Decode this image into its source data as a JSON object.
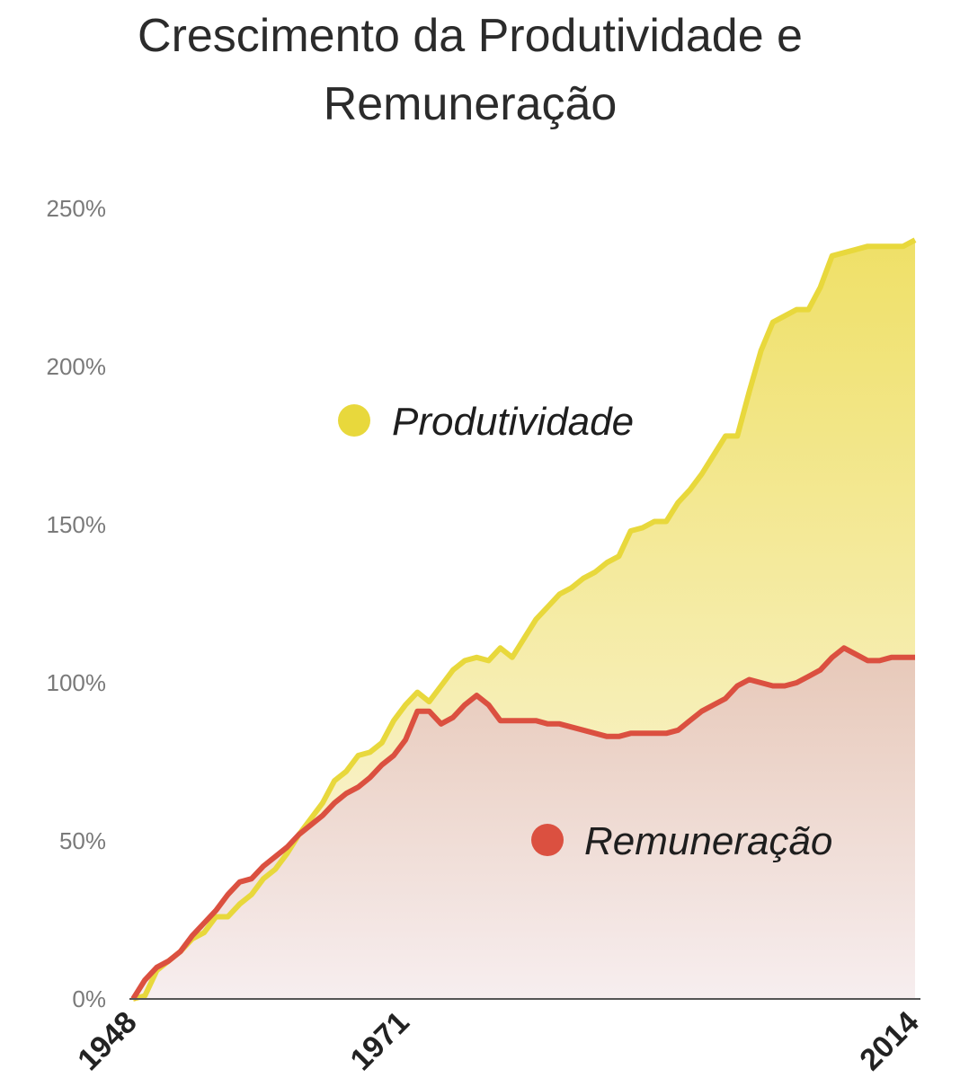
{
  "chart_data": {
    "type": "area",
    "title_lines": [
      "Crescimento da Produtividade e",
      "Remuneração"
    ],
    "ylim": [
      0,
      250
    ],
    "y_ticks": [
      "250%",
      "200%",
      "150%",
      "100%",
      "50%",
      "0%"
    ],
    "y_tick_values": [
      250,
      200,
      150,
      100,
      50,
      0
    ],
    "xlim": [
      1948,
      2014
    ],
    "x_ticks": [
      "1948",
      "1971",
      "2014"
    ],
    "x_tick_values": [
      1948,
      1971,
      2014
    ],
    "grid": false,
    "series": [
      {
        "name": "Produtividade",
        "color": "#e8d83c",
        "x": [
          1948,
          1949,
          1950,
          1951,
          1952,
          1953,
          1954,
          1955,
          1956,
          1957,
          1958,
          1959,
          1960,
          1961,
          1962,
          1963,
          1964,
          1965,
          1966,
          1967,
          1968,
          1969,
          1970,
          1971,
          1972,
          1973,
          1974,
          1975,
          1976,
          1977,
          1978,
          1979,
          1980,
          1981,
          1982,
          1983,
          1984,
          1985,
          1986,
          1987,
          1988,
          1989,
          1990,
          1991,
          1992,
          1993,
          1994,
          1995,
          1996,
          1997,
          1998,
          1999,
          2000,
          2001,
          2002,
          2003,
          2004,
          2005,
          2006,
          2007,
          2008,
          2009,
          2010,
          2011,
          2012,
          2013,
          2014
        ],
        "values": [
          0,
          1,
          9,
          12,
          15,
          19,
          21,
          26,
          26,
          30,
          33,
          38,
          41,
          46,
          52,
          57,
          62,
          69,
          72,
          77,
          78,
          81,
          88,
          93,
          97,
          94,
          99,
          104,
          107,
          108,
          107,
          111,
          108,
          114,
          120,
          124,
          128,
          130,
          133,
          135,
          138,
          140,
          148,
          149,
          151,
          151,
          157,
          161,
          166,
          172,
          178,
          178,
          192,
          205,
          214,
          216,
          218,
          218,
          225,
          235,
          236,
          237,
          238,
          238,
          238,
          238,
          240
        ],
        "label_key": "legend.produtividade"
      },
      {
        "name": "Remuneração",
        "color": "#db5040",
        "x": [
          1948,
          1949,
          1950,
          1951,
          1952,
          1953,
          1954,
          1955,
          1956,
          1957,
          1958,
          1959,
          1960,
          1961,
          1962,
          1963,
          1964,
          1965,
          1966,
          1967,
          1968,
          1969,
          1970,
          1971,
          1972,
          1973,
          1974,
          1975,
          1976,
          1977,
          1978,
          1979,
          1980,
          1981,
          1982,
          1983,
          1984,
          1985,
          1986,
          1987,
          1988,
          1989,
          1990,
          1991,
          1992,
          1993,
          1994,
          1995,
          1996,
          1997,
          1998,
          1999,
          2000,
          2001,
          2002,
          2003,
          2004,
          2005,
          2006,
          2007,
          2008,
          2009,
          2010,
          2011,
          2012,
          2013,
          2014
        ],
        "values": [
          0,
          6,
          10,
          12,
          15,
          20,
          24,
          28,
          33,
          37,
          38,
          42,
          45,
          48,
          52,
          55,
          58,
          62,
          65,
          67,
          70,
          74,
          77,
          82,
          91,
          91,
          87,
          89,
          93,
          96,
          93,
          88,
          88,
          88,
          88,
          87,
          87,
          86,
          85,
          84,
          83,
          83,
          84,
          84,
          84,
          84,
          85,
          88,
          91,
          93,
          95,
          99,
          101,
          100,
          99,
          99,
          100,
          102,
          104,
          108,
          111,
          109,
          107,
          107,
          108,
          108,
          108
        ],
        "label_key": "legend.remuneracao"
      }
    ]
  },
  "legend": {
    "produtividade": "Produtividade",
    "remuneracao": "Remuneração"
  },
  "colors": {
    "produtividade": "#e8d83c",
    "remuneracao": "#db5040",
    "axis": "#555555"
  }
}
